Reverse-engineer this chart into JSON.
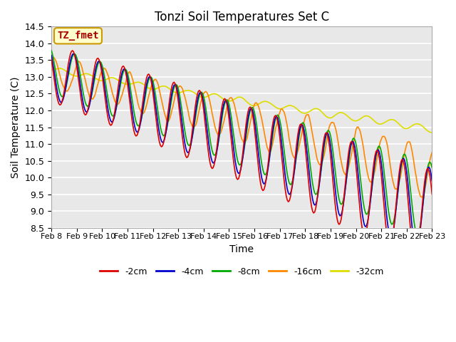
{
  "title": "Tonzi Soil Temperatures Set C",
  "ylabel": "Soil Temperature (C)",
  "xlabel": "Time",
  "ylim": [
    8.5,
    14.5
  ],
  "yticks": [
    8.5,
    9.0,
    9.5,
    10.0,
    10.5,
    11.0,
    11.5,
    12.0,
    12.5,
    13.0,
    13.5,
    14.0,
    14.5
  ],
  "line_colors": {
    "-2cm": "#dd0000",
    "-4cm": "#0000cc",
    "-8cm": "#00aa00",
    "-16cm": "#ff8800",
    "-32cm": "#dddd00"
  },
  "legend_labels": [
    "-2cm",
    "-4cm",
    "-8cm",
    "-16cm",
    "-32cm"
  ],
  "annotation_text": "TZ_fmet",
  "annotation_color": "#aa0000",
  "annotation_bg": "#ffffcc",
  "annotation_edge": "#cc9900",
  "bg_color": "#e8e8e8",
  "fig_bg": "#ffffff",
  "linewidth": 1.2
}
